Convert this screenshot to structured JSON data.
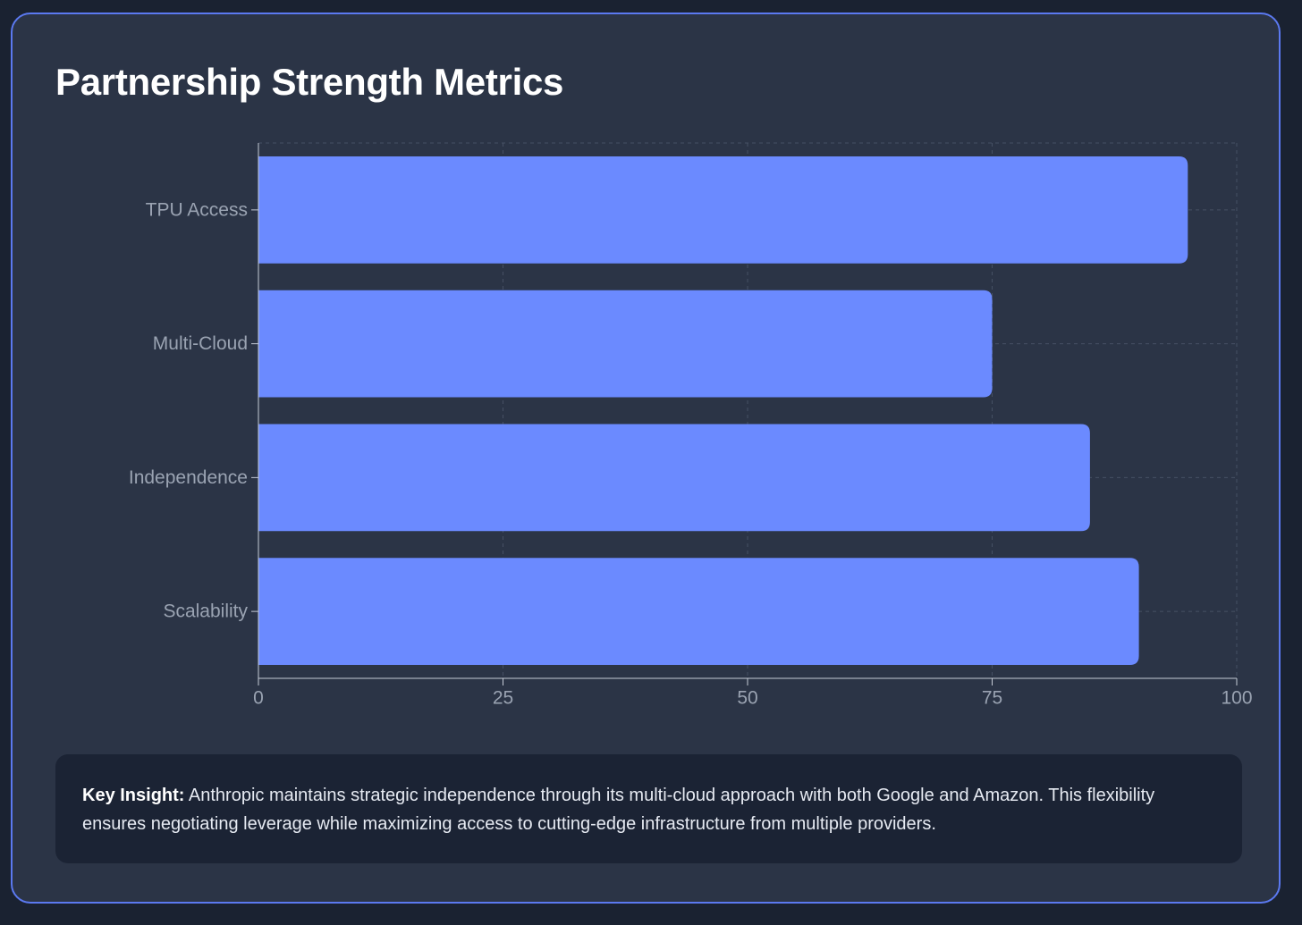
{
  "page": {
    "title": "Partnership Strength Metrics"
  },
  "colors": {
    "background": "#1a2231",
    "card": "#2b3446",
    "card_border": "#5b79f0",
    "bar": "#6b8aff",
    "axis": "#c5cbd6",
    "tick_label": "#9aa3b2",
    "grid": "#465064",
    "insight_bg": "#1b2334"
  },
  "chart_data": {
    "type": "bar",
    "orientation": "horizontal",
    "categories": [
      "TPU Access",
      "Multi-Cloud",
      "Independence",
      "Scalability"
    ],
    "values": [
      95,
      75,
      85,
      90
    ],
    "title": "Partnership Strength Metrics",
    "xlabel": "",
    "ylabel": "",
    "xlim": [
      0,
      100
    ],
    "xticks": [
      0,
      25,
      50,
      75,
      100
    ],
    "grid": true,
    "grid_style": "dashed"
  },
  "insight": {
    "label": "Key Insight:",
    "text": " Anthropic maintains strategic independence through its multi-cloud approach with both Google and Amazon. This flexibility ensures negotiating leverage while maximizing access to cutting-edge infrastructure from multiple providers."
  }
}
